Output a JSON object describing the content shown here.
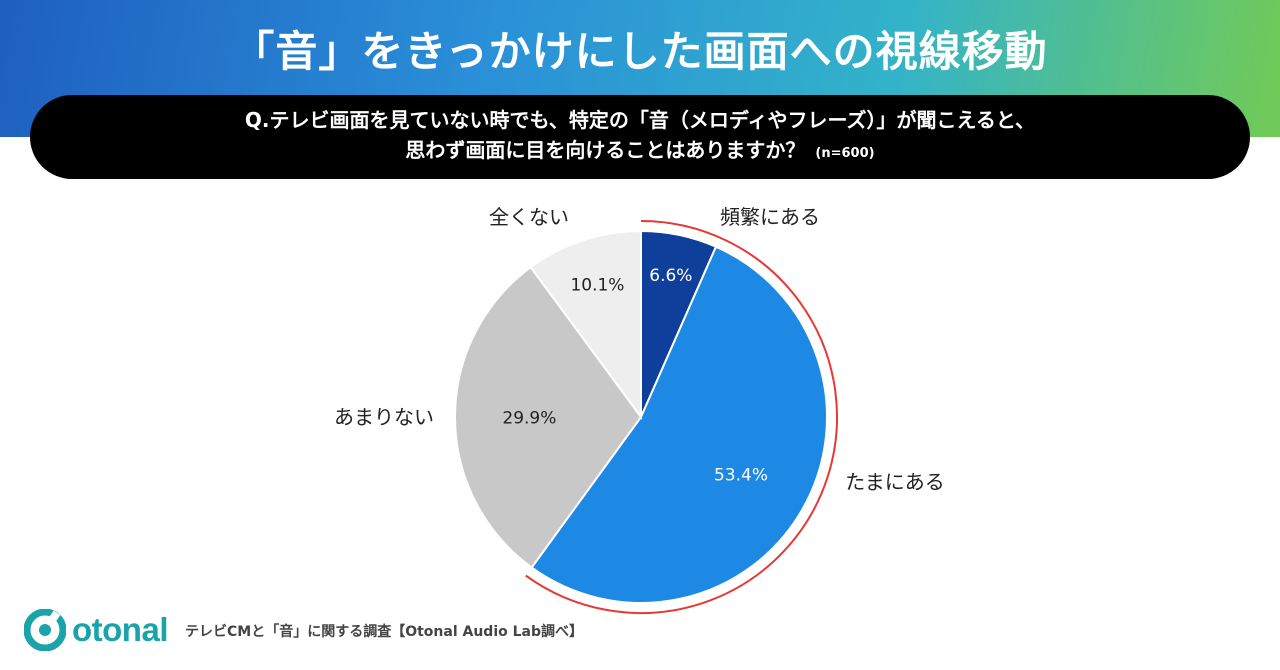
{
  "title": "「音」をきっかけにした画面への視線移動",
  "question": {
    "line1": "Q.テレビ画面を見ていない時でも、特定の「音（メロディやフレーズ）」が聞こえると、",
    "line2": "思わず画面に目を向けることはありますか？",
    "n": "(n=600)"
  },
  "chart_data": {
    "type": "pie",
    "slices": [
      {
        "label": "頻繁にある",
        "value": 6.6,
        "value_label": "6.6%",
        "color": "#0d3f9b",
        "text_color": "#ffffff"
      },
      {
        "label": "たまにある",
        "value": 53.4,
        "value_label": "53.4%",
        "color": "#1e88e5",
        "text_color": "#ffffff"
      },
      {
        "label": "あまりない",
        "value": 29.9,
        "value_label": "29.9%",
        "color": "#c8c8c8",
        "text_color": "#222222"
      },
      {
        "label": "全くない",
        "value": 10.1,
        "value_label": "10.1%",
        "color": "#eeeeee",
        "text_color": "#222222"
      }
    ],
    "highlight_color": "#e53935",
    "start": "12 o'clock",
    "direction": "clockwise"
  },
  "footer": {
    "logo_text": "otonal",
    "source": "テレビCMと「音」に関する調査【Otonal Audio Lab調べ】"
  }
}
